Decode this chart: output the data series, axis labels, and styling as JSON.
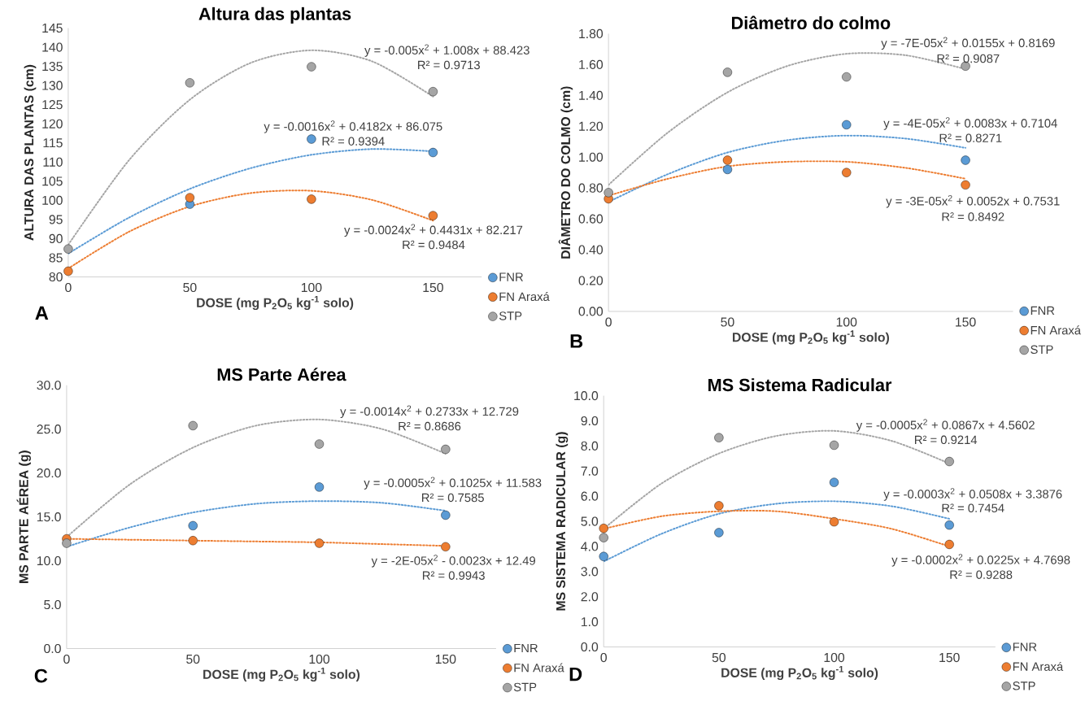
{
  "chart_data": [
    {
      "type": "scatter",
      "title": "Altura das plantas",
      "xlabel": "DOSE (mg P$_{2}$O$_{5}$ kg$^{-1}$ solo)",
      "ylabel": "ALTURA DAS PLANTAS (cm)",
      "xlim": [
        0,
        170
      ],
      "xticks": [
        0,
        50,
        100,
        150
      ],
      "ylim": [
        80,
        145
      ],
      "yticks": [
        80,
        85,
        90,
        95,
        100,
        105,
        110,
        115,
        120,
        125,
        130,
        135,
        140,
        145
      ],
      "legend": "bottom right",
      "annotations": [
        "y = -0.005x$^{2}$ + 1.008x + 88.423",
        "R² = 0.9713",
        "y = -0.0016x$^{2}$ + 0.4182x + 86.075",
        "R² = 0.9394",
        "y = -0.0024x$^{2}$ + 0.4431x + 82.217",
        "R² = 0.9484",
        "A"
      ],
      "series": [
        {
          "name": "FNR",
          "marker": "circle",
          "color": "#5b9bd5",
          "x": [
            50,
            100,
            150
          ],
          "values": [
            99,
            116,
            112.5
          ]
        },
        {
          "name": "FN Araxá",
          "marker": "circle",
          "color": "#ed7d31",
          "x": [
            0,
            50,
            100,
            150
          ],
          "values": [
            81.5,
            100.7,
            100.3,
            96
          ]
        },
        {
          "name": "STP",
          "marker": "circle",
          "color": "#a5a5a5",
          "x": [
            0,
            50,
            100,
            150
          ],
          "values": [
            87.3,
            130.7,
            134.9,
            128.4
          ]
        },
        {
          "type": "line",
          "line_style": "dotted",
          "color": "#5b9bd5",
          "x": [
            0,
            25,
            50,
            75,
            100,
            125,
            150
          ],
          "values": [
            86.1,
            95.5,
            103.0,
            108.4,
            111.9,
            113.4,
            112.8
          ]
        },
        {
          "type": "line",
          "line_style": "dotted",
          "color": "#ed7d31",
          "x": [
            0,
            25,
            50,
            75,
            100,
            125,
            150
          ],
          "values": [
            82.2,
            91.8,
            98.4,
            101.9,
            102.5,
            100.1,
            94.7
          ]
        },
        {
          "type": "line",
          "line_style": "dotted",
          "color": "#a5a5a5",
          "x": [
            0,
            25,
            50,
            75,
            100,
            125,
            150
          ],
          "values": [
            88.4,
            110.5,
            126.3,
            135.9,
            139.2,
            136.3,
            127.1
          ]
        }
      ]
    },
    {
      "type": "scatter",
      "title": "Diâmetro do colmo",
      "xlabel": "DOSE (mg P$_{2}$O$_{5}$ kg$^{-1}$ solo)",
      "ylabel": "DIÂMETRO DO COLMO (cm)",
      "xlim": [
        0,
        170
      ],
      "xticks": [
        0,
        50,
        100,
        150
      ],
      "ylim": [
        0,
        1.8
      ],
      "yticks": [
        {
          "value": 0,
          "label": "0.00"
        },
        {
          "value": 0.2,
          "label": "0.20"
        },
        {
          "value": 0.4,
          "label": "0.40"
        },
        {
          "value": 0.6,
          "label": "0.60"
        },
        {
          "value": 0.8,
          "label": "0.80"
        },
        {
          "value": 1.0,
          "label": "1.00"
        },
        {
          "value": 1.2,
          "label": "1.20"
        },
        {
          "value": 1.4,
          "label": "1.40"
        },
        {
          "value": 1.6,
          "label": "1.60"
        },
        {
          "value": 1.8,
          "label": "1.80"
        }
      ],
      "legend": "bottom right",
      "annotations": [
        "y = -7E-05x$^{2}$ + 0.0155x + 0.8169",
        "R² = 0.9087",
        "y = -4E-05x$^{2}$ + 0.0083x + 0.7104",
        "R² = 0.8271",
        "y = -3E-05x$^{2}$ + 0.0052x + 0.7531",
        "R² = 0.8492",
        "B"
      ],
      "series": [
        {
          "name": "FNR",
          "marker": "circle",
          "color": "#5b9bd5",
          "x": [
            50,
            100,
            150
          ],
          "values": [
            0.92,
            1.21,
            0.98
          ]
        },
        {
          "name": "FN Araxá",
          "marker": "circle",
          "color": "#ed7d31",
          "x": [
            0,
            50,
            100,
            150
          ],
          "values": [
            0.73,
            0.98,
            0.9,
            0.82
          ]
        },
        {
          "name": "STP",
          "marker": "circle",
          "color": "#a5a5a5",
          "x": [
            0,
            50,
            100,
            150
          ],
          "values": [
            0.77,
            1.55,
            1.52,
            1.59
          ]
        },
        {
          "type": "line",
          "line_style": "dotted",
          "color": "#5b9bd5",
          "x": [
            0,
            25,
            50,
            75,
            100,
            125,
            150
          ],
          "values": [
            0.71,
            0.89,
            1.03,
            1.11,
            1.14,
            1.12,
            1.06
          ]
        },
        {
          "type": "line",
          "line_style": "dotted",
          "color": "#ed7d31",
          "x": [
            0,
            25,
            50,
            75,
            100,
            125,
            150
          ],
          "values": [
            0.75,
            0.86,
            0.94,
            0.97,
            0.97,
            0.93,
            0.86
          ]
        },
        {
          "type": "line",
          "line_style": "dotted",
          "color": "#a5a5a5",
          "x": [
            0,
            25,
            50,
            75,
            100,
            125,
            150
          ],
          "values": [
            0.82,
            1.16,
            1.42,
            1.59,
            1.67,
            1.66,
            1.57
          ]
        }
      ]
    },
    {
      "type": "scatter",
      "title": "MS Parte Aérea",
      "xlabel": "DOSE (mg P$_{2}$O$_{5}$ kg$^{-1}$ solo)",
      "ylabel": "MS PARTE AÉREA (g)",
      "xlim": [
        0,
        170
      ],
      "xticks": [
        0,
        50,
        100,
        150
      ],
      "ylim": [
        0,
        30
      ],
      "yticks": [
        {
          "value": 0,
          "label": "0.0"
        },
        {
          "value": 5,
          "label": "5.0"
        },
        {
          "value": 10,
          "label": "10.0"
        },
        {
          "value": 15,
          "label": "15.0"
        },
        {
          "value": 20,
          "label": "20.0"
        },
        {
          "value": 25,
          "label": "25.0"
        },
        {
          "value": 30,
          "label": "30.0"
        }
      ],
      "legend": "bottom right",
      "annotations": [
        "y = -0.0014x$^{2}$ + 0.2733x + 12.729",
        "R² = 0.8686",
        "y = -0.0005x$^{2}$ + 0.1025x + 11.583",
        "R² = 0.7585",
        "y = -2E-05x$^{2}$ - 0.0023x + 12.49",
        "R² = 0.9943",
        "C"
      ],
      "series": [
        {
          "name": "FNR",
          "marker": "circle",
          "color": "#5b9bd5",
          "x": [
            50,
            100,
            150
          ],
          "values": [
            14.0,
            18.4,
            15.2
          ]
        },
        {
          "name": "FN Araxá",
          "marker": "circle",
          "color": "#ed7d31",
          "x": [
            0,
            50,
            100,
            150
          ],
          "values": [
            12.5,
            12.3,
            12.0,
            11.6
          ]
        },
        {
          "name": "STP",
          "marker": "circle",
          "color": "#a5a5a5",
          "x": [
            0,
            50,
            100,
            150
          ],
          "values": [
            12.0,
            25.4,
            23.3,
            22.7
          ]
        },
        {
          "type": "line",
          "line_style": "dotted",
          "color": "#5b9bd5",
          "x": [
            0,
            25,
            50,
            75,
            100,
            125,
            150
          ],
          "values": [
            11.6,
            13.8,
            15.5,
            16.5,
            16.8,
            16.6,
            15.7
          ]
        },
        {
          "type": "line",
          "line_style": "dotted",
          "color": "#ed7d31",
          "x": [
            0,
            25,
            50,
            75,
            100,
            125,
            150
          ],
          "values": [
            12.5,
            12.4,
            12.3,
            12.2,
            12.1,
            11.9,
            11.7
          ]
        },
        {
          "type": "line",
          "line_style": "dotted",
          "color": "#a5a5a5",
          "x": [
            0,
            25,
            50,
            75,
            100,
            125,
            150
          ],
          "values": [
            12.7,
            18.7,
            22.9,
            25.4,
            26.1,
            25.0,
            22.2
          ]
        }
      ]
    },
    {
      "type": "scatter",
      "title": "MS Sistema Radicular",
      "xlabel": "DOSE (mg P$_{2}$O$_{5}$ kg$^{-1}$ solo)",
      "ylabel": "MS SISTEMA RADICULAR (g)",
      "xlim": [
        0,
        170
      ],
      "xticks": [
        0,
        50,
        100,
        150
      ],
      "ylim": [
        0,
        10
      ],
      "yticks": [
        {
          "value": 0,
          "label": "0.0"
        },
        {
          "value": 1,
          "label": "1.0"
        },
        {
          "value": 2,
          "label": "2.0"
        },
        {
          "value": 3,
          "label": "3.0"
        },
        {
          "value": 4,
          "label": "4.0"
        },
        {
          "value": 5,
          "label": "5.0"
        },
        {
          "value": 6,
          "label": "6.0"
        },
        {
          "value": 7,
          "label": "7.0"
        },
        {
          "value": 8,
          "label": "8.0"
        },
        {
          "value": 9,
          "label": "9.0"
        },
        {
          "value": 10,
          "label": "10.0"
        }
      ],
      "legend": "bottom right",
      "annotations": [
        "y = -0.0005x$^{2}$ + 0.0867x + 4.5602",
        "R² = 0.9214",
        "y = -0.0003x$^{2}$ + 0.0508x + 3.3876",
        "R² = 0.7454",
        "y = -0.0002x$^{2}$ + 0.0225x + 4.7698",
        "R² = 0.9288",
        "D"
      ],
      "series": [
        {
          "name": "FNR",
          "marker": "circle",
          "color": "#5b9bd5",
          "x": [
            0,
            50,
            100,
            150
          ],
          "values": [
            3.6,
            4.55,
            6.55,
            4.85
          ]
        },
        {
          "name": "FN Araxá",
          "marker": "circle",
          "color": "#ed7d31",
          "x": [
            0,
            50,
            100,
            150
          ],
          "values": [
            4.72,
            5.62,
            4.98,
            4.08
          ]
        },
        {
          "name": "STP",
          "marker": "circle",
          "color": "#a5a5a5",
          "x": [
            0,
            50,
            100,
            150
          ],
          "values": [
            4.35,
            8.33,
            8.03,
            7.38
          ]
        },
        {
          "type": "line",
          "line_style": "dotted",
          "color": "#5b9bd5",
          "x": [
            0,
            25,
            50,
            75,
            100,
            125,
            150
          ],
          "values": [
            3.4,
            4.5,
            5.3,
            5.7,
            5.8,
            5.6,
            5.1
          ]
        },
        {
          "type": "line",
          "line_style": "dotted",
          "color": "#ed7d31",
          "x": [
            0,
            25,
            50,
            75,
            100,
            125,
            150
          ],
          "values": [
            4.7,
            5.2,
            5.4,
            5.4,
            5.1,
            4.7,
            4.0
          ]
        },
        {
          "type": "line",
          "line_style": "dotted",
          "color": "#a5a5a5",
          "x": [
            0,
            25,
            50,
            75,
            100,
            125,
            150
          ],
          "values": [
            4.7,
            6.5,
            7.7,
            8.4,
            8.6,
            8.2,
            7.3
          ]
        }
      ]
    }
  ]
}
